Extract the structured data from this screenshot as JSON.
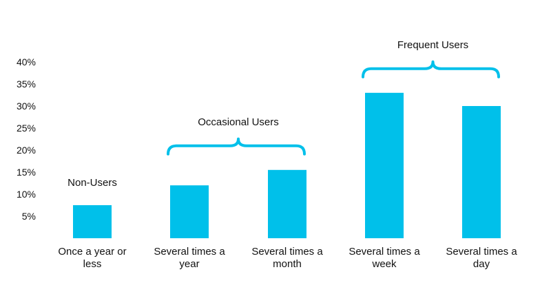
{
  "chart_data": {
    "type": "bar",
    "title": "",
    "xlabel": "",
    "ylabel": "",
    "ylim": [
      0,
      40
    ],
    "yticks": [
      5,
      10,
      15,
      20,
      25,
      30,
      35,
      40
    ],
    "ytick_labels": [
      "5%",
      "10%",
      "15%",
      "20%",
      "25%",
      "30%",
      "35%",
      "40%"
    ],
    "grid": false,
    "legend": "none",
    "bar_color": "#00c0ea",
    "categories": [
      [
        "Once a year or",
        "less"
      ],
      [
        "Several times a",
        "year"
      ],
      [
        "Several times a",
        "month"
      ],
      [
        "Several times a",
        "week"
      ],
      [
        "Several times a",
        "day"
      ]
    ],
    "values": [
      7.5,
      12,
      15.5,
      33,
      30
    ],
    "groups": [
      {
        "label": "Non-Users",
        "categories": [
          0
        ],
        "bracket": false
      },
      {
        "label": "Occasional Users",
        "categories": [
          1,
          2
        ],
        "bracket": true
      },
      {
        "label": "Frequent Users",
        "categories": [
          3,
          4
        ],
        "bracket": true
      }
    ]
  }
}
